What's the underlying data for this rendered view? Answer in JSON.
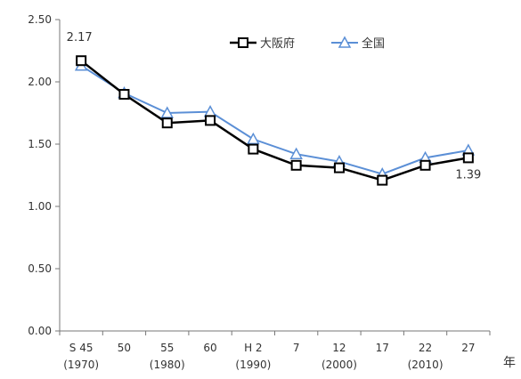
{
  "chart_data": {
    "type": "line",
    "x_unit": "年",
    "categories": [
      {
        "line1": "S 45",
        "line2": "(1970)"
      },
      {
        "line1": "50",
        "line2": ""
      },
      {
        "line1": "55",
        "line2": "(1980)"
      },
      {
        "line1": "60",
        "line2": ""
      },
      {
        "line1": "H 2",
        "line2": "(1990)"
      },
      {
        "line1": "7",
        "line2": ""
      },
      {
        "line1": "12",
        "line2": "(2000)"
      },
      {
        "line1": "17",
        "line2": ""
      },
      {
        "line1": "22",
        "line2": "(2010)"
      },
      {
        "line1": "27",
        "line2": ""
      }
    ],
    "ylim": [
      0,
      2.5
    ],
    "yticks": [
      "0.00",
      "0.50",
      "1.00",
      "1.50",
      "2.00",
      "2.50"
    ],
    "grid": false,
    "legend_position": "top-right",
    "series": [
      {
        "name": "大阪府",
        "color": "#000000",
        "marker": "square",
        "values": [
          2.17,
          1.9,
          1.67,
          1.69,
          1.46,
          1.33,
          1.31,
          1.21,
          1.33,
          1.39
        ]
      },
      {
        "name": "全国",
        "color": "#5b8fd6",
        "marker": "triangle",
        "values": [
          2.13,
          1.91,
          1.75,
          1.76,
          1.54,
          1.42,
          1.36,
          1.26,
          1.39,
          1.45
        ]
      }
    ],
    "annotations": [
      {
        "text": "2.17",
        "series": 0,
        "index": 0
      },
      {
        "text": "1.39",
        "series": 0,
        "index": 9
      }
    ]
  }
}
